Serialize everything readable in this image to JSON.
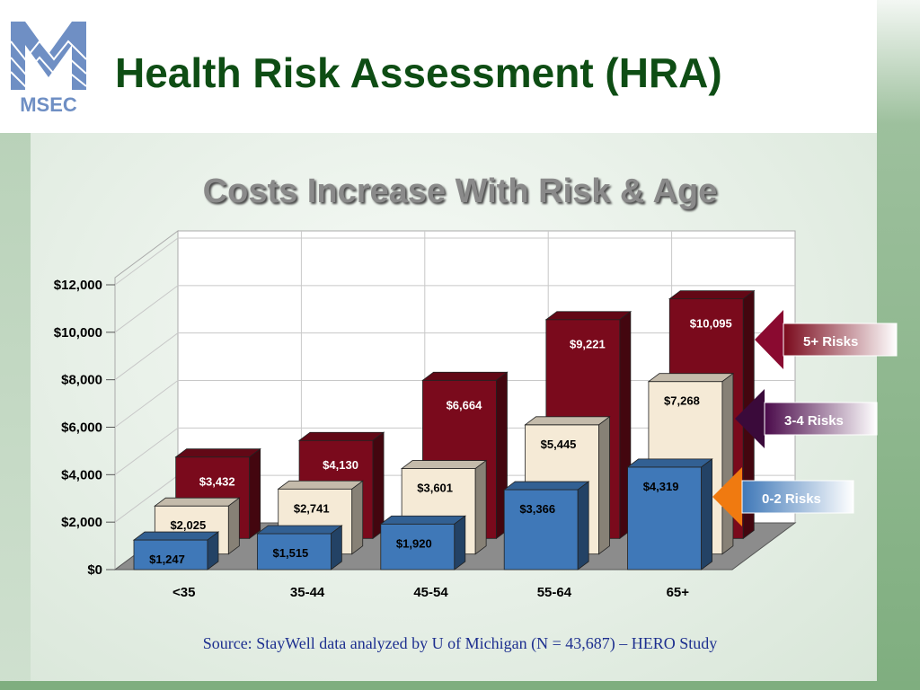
{
  "header": {
    "logo_text": "MSEC",
    "title": "Health Risk Assessment (HRA)"
  },
  "source_note": "Source:  StayWell data analyzed by U of Michigan (N = 43,687) – HERO Study",
  "colors": {
    "title": "#0e4d14",
    "source": "#1d2f8f",
    "series_high": "#7a0a1c",
    "series_mid": "#f5ead6",
    "series_low": "#3f78b8"
  },
  "chart_data": {
    "type": "bar",
    "style": "3d-clustered-stacked-depth",
    "title": "Costs Increase With Risk & Age",
    "xlabel": "",
    "ylabel": "",
    "categories": [
      "<35",
      "35-44",
      "45-54",
      "55-64",
      "65+"
    ],
    "ylim": [
      0,
      12000
    ],
    "yticks": [
      "$0",
      "$2,000",
      "$4,000",
      "$6,000",
      "$8,000",
      "$10,000",
      "$12,000"
    ],
    "grid": true,
    "legend_placement": "right",
    "series": [
      {
        "name": "5+ Risks",
        "color": "#7a0a1c",
        "values": [
          3432,
          4130,
          6664,
          9221,
          10095
        ],
        "labels": [
          "$3,432",
          "$4,130",
          "$6,664",
          "$9,221",
          "$10,095"
        ]
      },
      {
        "name": "3-4 Risks",
        "color": "#f5ead6",
        "values": [
          2025,
          2741,
          3601,
          5445,
          7268
        ],
        "labels": [
          "$2,025",
          "$2,741",
          "$3,601",
          "$5,445",
          "$7,268"
        ]
      },
      {
        "name": "0-2 Risks",
        "color": "#3f78b8",
        "values": [
          1247,
          1515,
          1920,
          3366,
          4319
        ],
        "labels": [
          "$1,247",
          "$1,515",
          "$1,920",
          "$3,366",
          "$4,319"
        ]
      }
    ]
  }
}
